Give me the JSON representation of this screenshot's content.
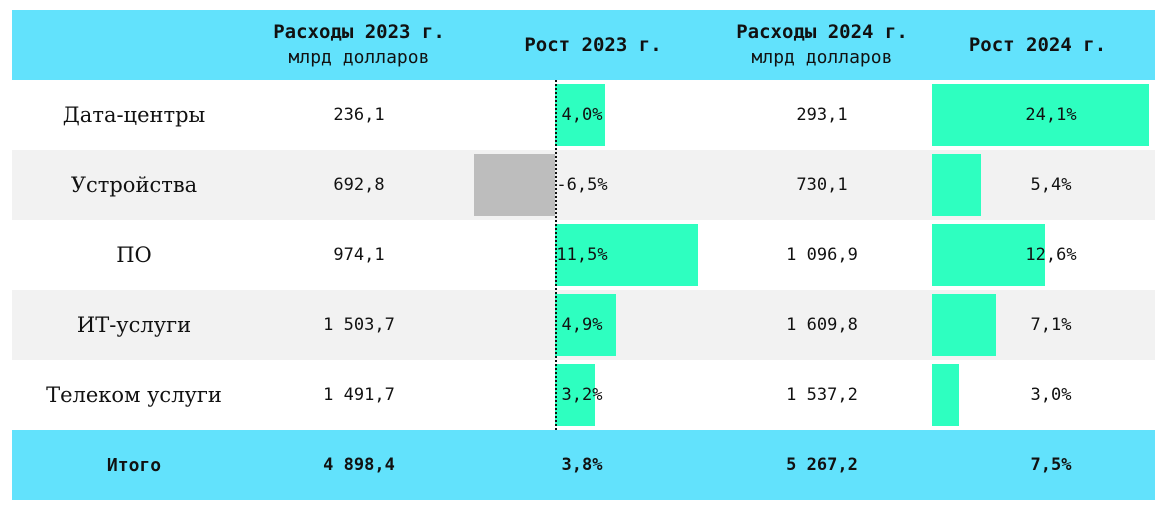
{
  "header": {
    "spend_2023_title": "Расходы 2023 г.",
    "spend_2023_unit": "млрд долларов",
    "growth_2023_title": "Рост 2023 г.",
    "spend_2024_title": "Расходы 2024 г.",
    "spend_2024_unit": "млрд долларов",
    "growth_2024_title": "Рост 2024 г."
  },
  "rows": [
    {
      "category": "Дата-центры",
      "spend_2023": "236,1",
      "growth_2023": "4,0%",
      "spend_2024": "293,1",
      "growth_2024": "24,1%"
    },
    {
      "category": "Устройства",
      "spend_2023": "692,8",
      "growth_2023": "-6,5%",
      "spend_2024": "730,1",
      "growth_2024": "5,4%"
    },
    {
      "category": "ПО",
      "spend_2023": "974,1",
      "growth_2023": "11,5%",
      "spend_2024": "1 096,9",
      "growth_2024": "12,6%"
    },
    {
      "category": "ИТ-услуги",
      "spend_2023": "1 503,7",
      "growth_2023": "4,9%",
      "spend_2024": "1 609,8",
      "growth_2024": "7,1%"
    },
    {
      "category": "Телеком услуги",
      "spend_2023": "1 491,7",
      "growth_2023": "3,2%",
      "spend_2024": "1 537,2",
      "growth_2024": "3,0%"
    }
  ],
  "total": {
    "category": "Итого",
    "spend_2023": "4 898,4",
    "growth_2023": "3,8%",
    "spend_2024": "5 267,2",
    "growth_2024": "7,5%"
  },
  "colors": {
    "header_bg": "#62e2fc",
    "positive_bar": "#2effc0",
    "negative_bar": "#bdbdbd",
    "row_shade": "#f2f2f2"
  },
  "chart_data": {
    "type": "table",
    "columns": [
      "",
      "Расходы 2023 г. млрд долларов",
      "Рост 2023 г.",
      "Расходы 2024 г. млрд долларов",
      "Рост 2024 г."
    ],
    "categories": [
      "Дата-центры",
      "Устройства",
      "ПО",
      "ИТ-услуги",
      "Телеком услуги"
    ],
    "series": [
      {
        "name": "Расходы 2023 г.",
        "values": [
          236.1,
          692.8,
          974.1,
          1503.7,
          1491.7
        ]
      },
      {
        "name": "Рост 2023 г.",
        "values": [
          4.0,
          -6.5,
          11.5,
          4.9,
          3.2
        ]
      },
      {
        "name": "Расходы 2024 г.",
        "values": [
          293.1,
          730.1,
          1096.9,
          1609.8,
          1537.2
        ]
      },
      {
        "name": "Рост 2024 г.",
        "values": [
          24.1,
          5.4,
          12.6,
          7.1,
          3.0
        ]
      }
    ],
    "totals": {
      "Расходы 2023 г.": 4898.4,
      "Рост 2023 г.": 3.8,
      "Расходы 2024 г.": 5267.2,
      "Рост 2024 г.": 7.5
    }
  }
}
